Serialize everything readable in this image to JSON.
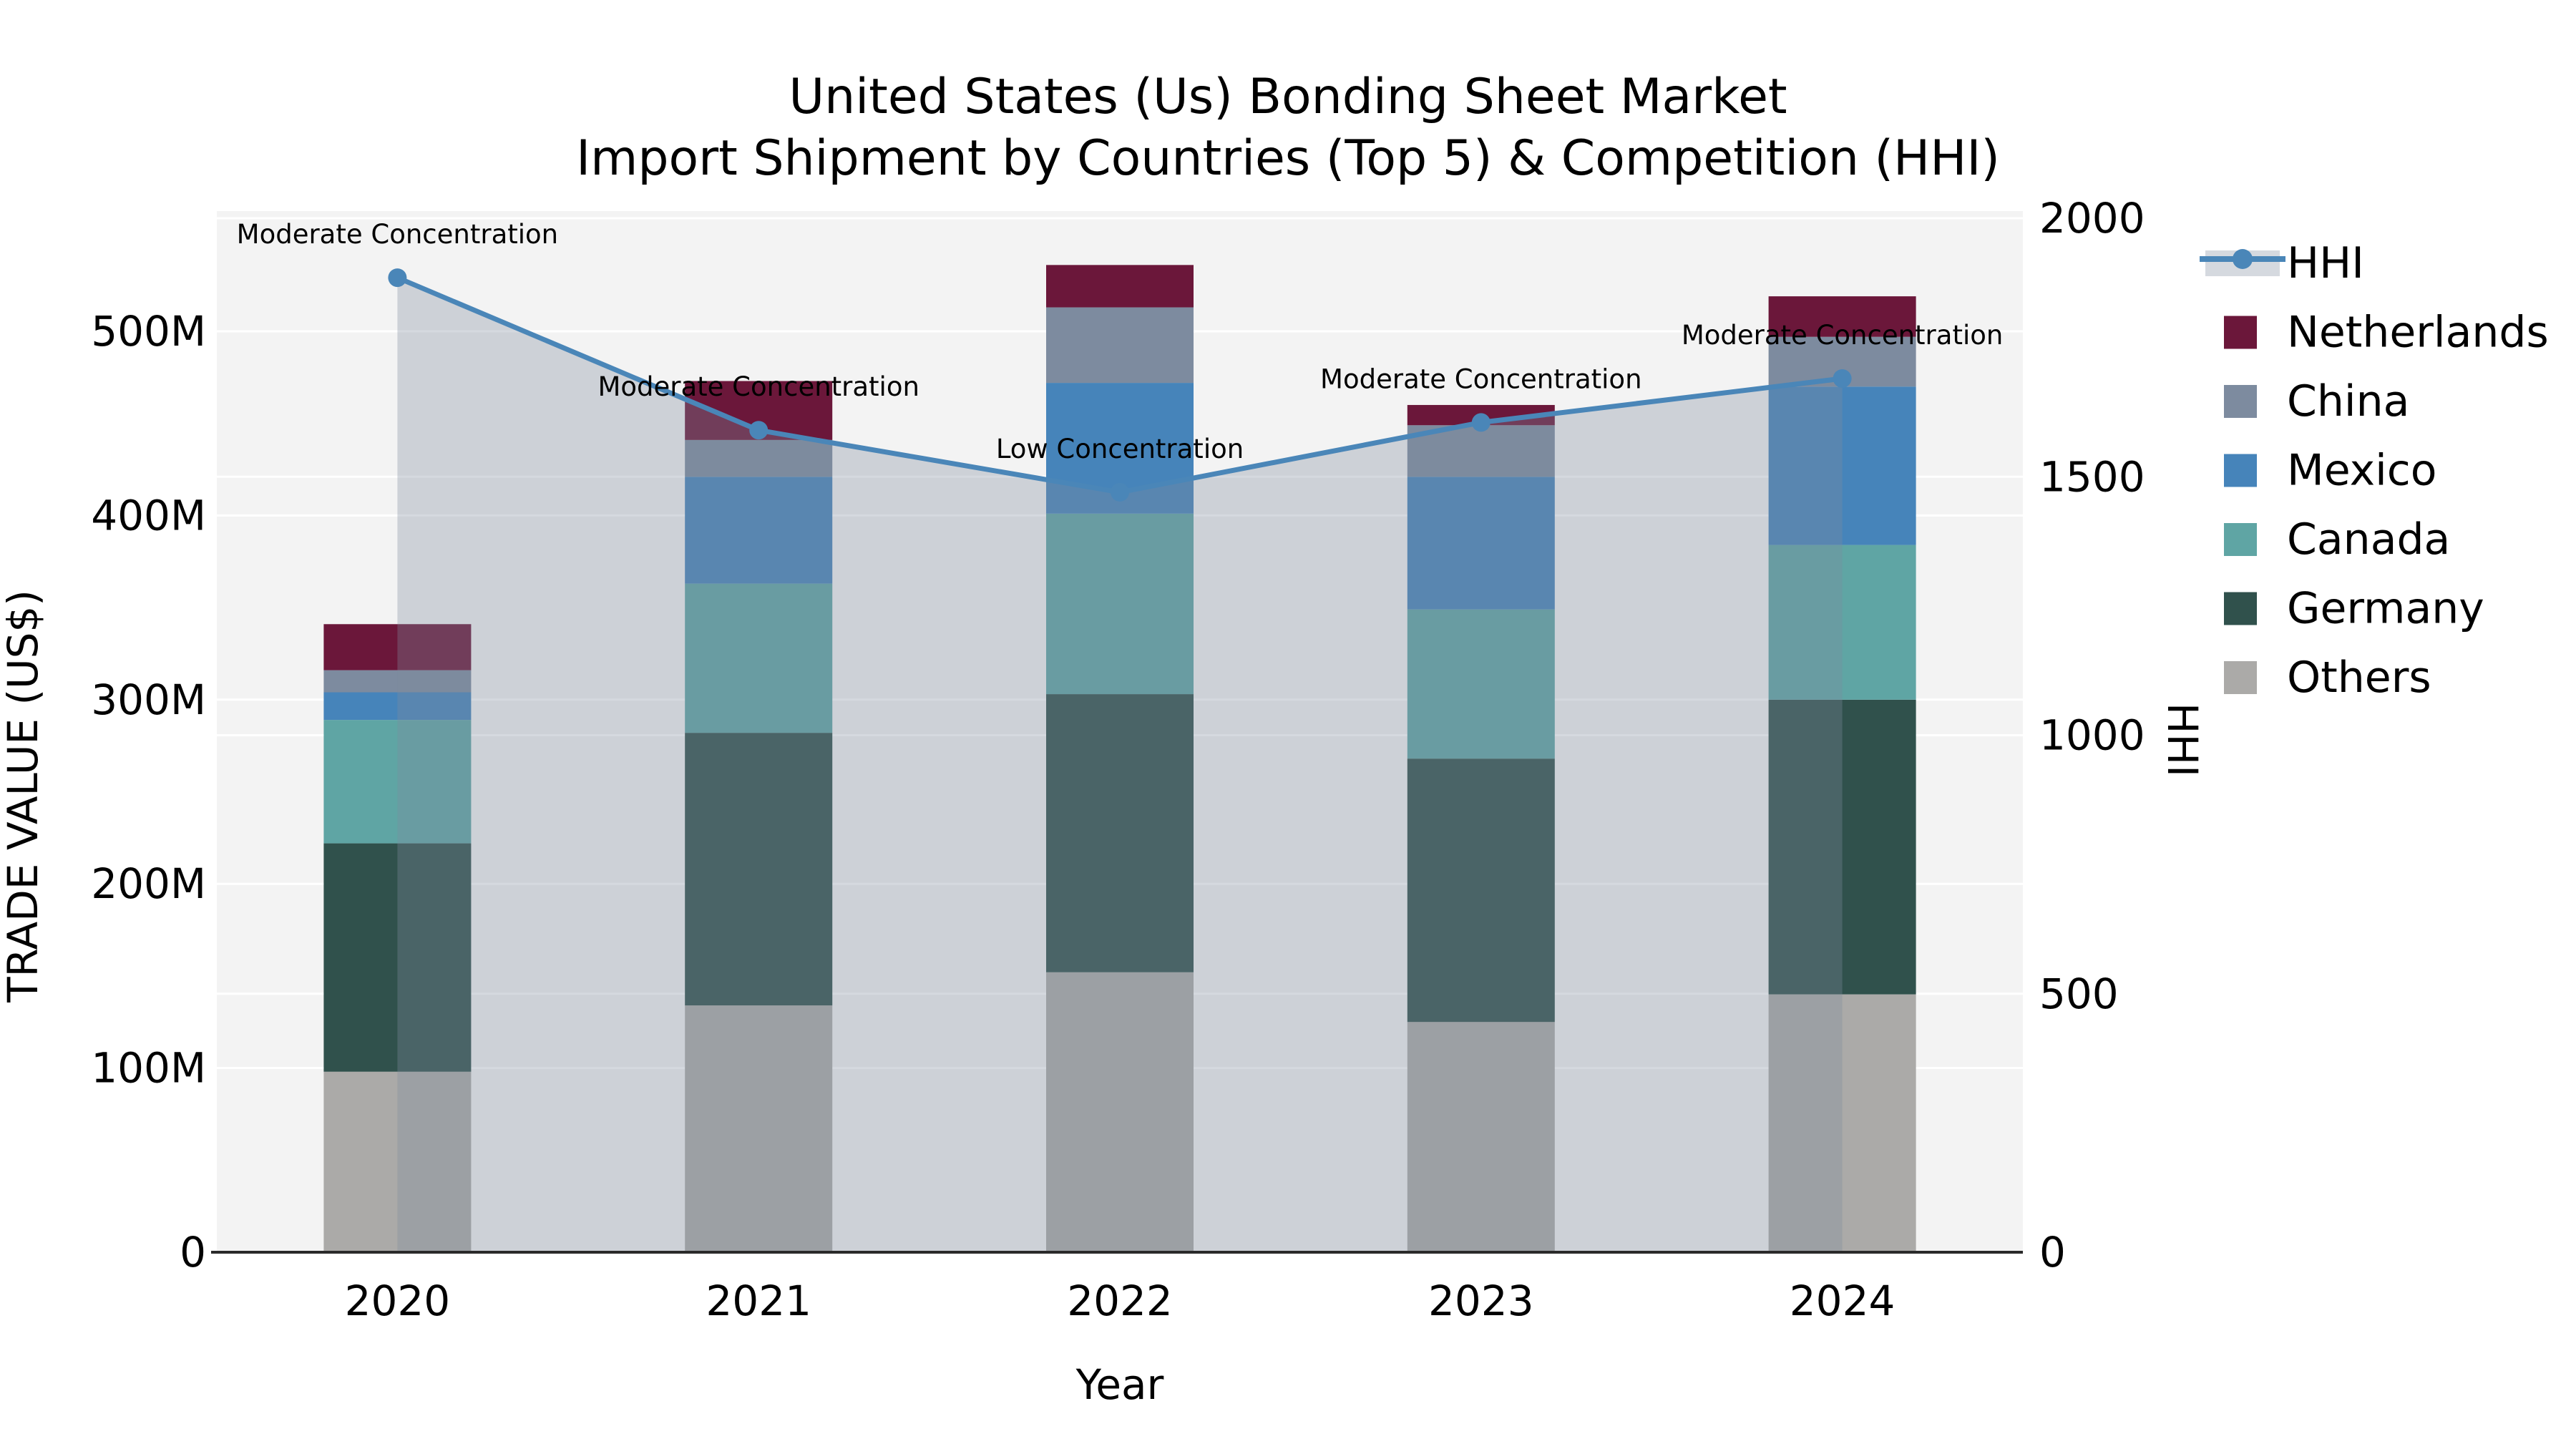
{
  "title": {
    "line1": "United States (Us) Bonding Sheet Market",
    "line2": "Import Shipment by Countries (Top 5) & Competition (HHI)"
  },
  "chart_data": {
    "type": "bar+line",
    "subtype": "stacked-bars-with-secondary-axis-line-and-area",
    "categories": [
      "2020",
      "2021",
      "2022",
      "2023",
      "2024"
    ],
    "xlabel": "Year",
    "ylabel_left": "TRADE VALUE (US$)",
    "ylabel_right": "HHI",
    "series": [
      {
        "name": "Others",
        "color": "#abaaa8",
        "values": [
          98,
          134,
          152,
          125,
          140
        ]
      },
      {
        "name": "Germany",
        "color": "#30514c",
        "values": [
          124,
          148,
          151,
          143,
          160
        ]
      },
      {
        "name": "Canada",
        "color": "#5fa5a4",
        "values": [
          67,
          81,
          98,
          81,
          84
        ]
      },
      {
        "name": "Mexico",
        "color": "#4684ba",
        "values": [
          15,
          58,
          71,
          72,
          86
        ]
      },
      {
        "name": "China",
        "color": "#7d8b9f",
        "values": [
          12,
          20,
          41,
          28,
          27
        ]
      },
      {
        "name": "Netherlands",
        "color": "#6b173a",
        "values": [
          25,
          32,
          23,
          11,
          22
        ]
      }
    ],
    "series_color_fix": {
      "China": "#7d8b9f"
    },
    "line_series": {
      "name": "HHI",
      "color": "#4a86b8",
      "area_color": "rgba(126,139,158,0.33)",
      "values": [
        1885,
        1590,
        1470,
        1605,
        1690
      ]
    },
    "annotations": [
      "Moderate Concentration",
      "Moderate Concentration",
      "Low Concentration",
      "Moderate Concentration",
      "Moderate Concentration"
    ],
    "y_left": {
      "unit": "US$ millions",
      "range": [
        0,
        565
      ],
      "ticks": [
        {
          "value": 0,
          "label": "0"
        },
        {
          "value": 100,
          "label": "100M"
        },
        {
          "value": 200,
          "label": "200M"
        },
        {
          "value": 300,
          "label": "300M"
        },
        {
          "value": 400,
          "label": "400M"
        },
        {
          "value": 500,
          "label": "500M"
        }
      ]
    },
    "y_right": {
      "unit": "HHI index",
      "range": [
        0,
        2014
      ],
      "ticks": [
        {
          "value": 0,
          "label": "0"
        },
        {
          "value": 500,
          "label": "500"
        },
        {
          "value": 1000,
          "label": "1000"
        },
        {
          "value": 1500,
          "label": "1500"
        },
        {
          "value": 2000,
          "label": "2000"
        }
      ]
    },
    "legend": [
      {
        "label": "HHI",
        "type": "line-on-band",
        "color": "#4a86b8",
        "band_color": "rgba(126,139,158,0.33)"
      },
      {
        "label": "Netherlands",
        "type": "swatch",
        "color": "#6b173a"
      },
      {
        "label": "China",
        "type": "swatch",
        "color": "#7d8b9f"
      },
      {
        "label": "Mexico",
        "type": "swatch",
        "color": "#4684ba"
      },
      {
        "label": "Canada",
        "type": "swatch",
        "color": "#5fa5a4"
      },
      {
        "label": "Germany",
        "type": "swatch",
        "color": "#30514c"
      },
      {
        "label": "Others",
        "type": "swatch",
        "color": "#abaaa8"
      }
    ],
    "grid": {
      "on": true,
      "color": "#ffffff",
      "plot_bg": "#f3f3f3",
      "axis_line_color": "#2a2a2a"
    },
    "legend_position": "right-outside"
  }
}
